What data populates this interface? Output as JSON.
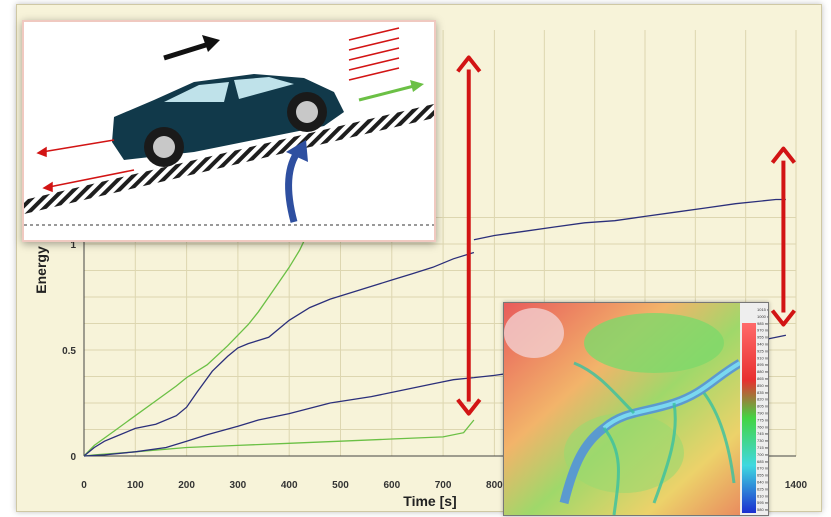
{
  "chart_data": {
    "type": "line",
    "xlabel": "Time  [s]",
    "ylabel": "Energy",
    "xlim": [
      0,
      1400
    ],
    "ylim": [
      0,
      1.05
    ],
    "x_ticks": [
      "0",
      "100",
      "200",
      "300",
      "400",
      "500",
      "600",
      "700",
      "800",
      "1400"
    ],
    "y_ticks": [
      "0",
      "0.5",
      "1"
    ],
    "grid": true,
    "colors": {
      "green": "#6bc045",
      "navy": "#2b2f7a",
      "red": "#d21414"
    },
    "series": [
      {
        "x": [
          0,
          20,
          60,
          100,
          140,
          180,
          200,
          240,
          280,
          300,
          320,
          340,
          360,
          380,
          400,
          420,
          430
        ],
        "y": [
          0,
          0.05,
          0.12,
          0.19,
          0.26,
          0.33,
          0.37,
          0.43,
          0.52,
          0.57,
          0.62,
          0.68,
          0.75,
          0.82,
          0.89,
          0.97,
          1.02
        ]
      },
      {
        "x": [
          0,
          20,
          40,
          60,
          100,
          140,
          180,
          200,
          220,
          250,
          280,
          300,
          320,
          360,
          400,
          440,
          480,
          520,
          560,
          600,
          640,
          680,
          720,
          760
        ],
        "y": [
          0,
          0.04,
          0.07,
          0.09,
          0.13,
          0.15,
          0.19,
          0.23,
          0.3,
          0.4,
          0.47,
          0.51,
          0.53,
          0.56,
          0.64,
          0.7,
          0.74,
          0.77,
          0.8,
          0.83,
          0.86,
          0.89,
          0.93,
          0.96
        ]
      },
      {
        "x": [
          0,
          20,
          100,
          200,
          300,
          400,
          500,
          600,
          700,
          740,
          760
        ],
        "y": [
          0,
          0.005,
          0.02,
          0.04,
          0.05,
          0.06,
          0.07,
          0.08,
          0.09,
          0.11,
          0.17
        ]
      },
      {
        "x": [
          0,
          40,
          100,
          160,
          200,
          240,
          300,
          340,
          400,
          480,
          560,
          620,
          680,
          720,
          760
        ],
        "y": [
          0,
          0.005,
          0.02,
          0.04,
          0.07,
          0.1,
          0.14,
          0.17,
          0.2,
          0.25,
          0.28,
          0.31,
          0.34,
          0.36,
          0.37
        ]
      },
      {
        "x": [
          760,
          800,
          860,
          920,
          980,
          1040,
          1100,
          1160,
          1220,
          1280,
          1320,
          1360,
          1380
        ],
        "y": [
          1.02,
          1.04,
          1.06,
          1.08,
          1.1,
          1.11,
          1.13,
          1.15,
          1.17,
          1.19,
          1.2,
          1.21,
          1.21
        ]
      },
      {
        "x": [
          760,
          800,
          860,
          920,
          980,
          1040,
          1100,
          1160,
          1220,
          1280,
          1340,
          1380
        ],
        "y": [
          0.37,
          0.38,
          0.4,
          0.42,
          0.44,
          0.46,
          0.48,
          0.5,
          0.52,
          0.54,
          0.55,
          0.57
        ]
      }
    ],
    "arrows": [
      {
        "x": 750,
        "y_from": 0.2,
        "y_to": 1.88
      },
      {
        "x": 1375,
        "y_from": 0.62,
        "y_to": 1.45
      }
    ]
  },
  "map_scale": [
    "1015 m",
    "1000 m",
    "985 m",
    "970 m",
    "955 m",
    "940 m",
    "925 m",
    "910 m",
    "895 m",
    "880 m",
    "865 m",
    "850 m",
    "835 m",
    "820 m",
    "805 m",
    "790 m",
    "775 m",
    "760 m",
    "745 m",
    "730 m",
    "715 m",
    "700 m",
    "685 m",
    "670 m",
    "655 m",
    "640 m",
    "625 m",
    "610 m",
    "595 m",
    "580 m"
  ]
}
